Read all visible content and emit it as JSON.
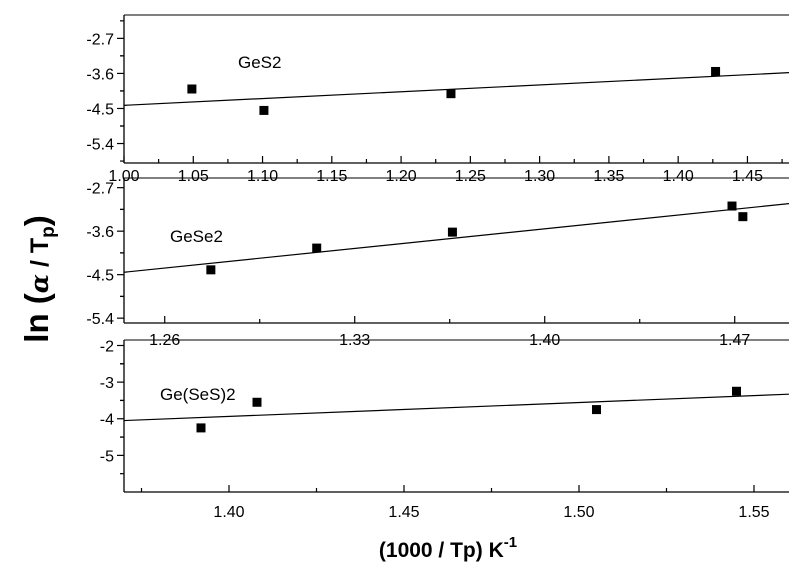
{
  "xlabel": {
    "main": "(1000 / Tp) K",
    "sup": "-1"
  },
  "ylabel": {
    "prefix": "ln (",
    "alpha": "α",
    "slash": " / T",
    "sub": "p",
    "suffix": ")"
  },
  "chart_data": [
    {
      "type": "scatter",
      "name": "GeS2",
      "xlim": [
        1.0,
        1.48
      ],
      "ylim": [
        -5.9,
        -2.1
      ],
      "xticks": [
        1.0,
        1.05,
        1.1,
        1.15,
        1.2,
        1.25,
        1.3,
        1.35,
        1.4,
        1.45
      ],
      "xtick_labels": [
        "1.00",
        "1.05",
        "1.10",
        "1.15",
        "1.20",
        "1.25",
        "1.30",
        "1.35",
        "1.40",
        "1.45"
      ],
      "yticks": [
        -2.7,
        -3.6,
        -4.5,
        -5.4
      ],
      "ytick_labels": [
        "-2.7",
        "-3.6",
        "-4.5",
        "-5.4"
      ],
      "x": [
        1.049,
        1.101,
        1.236,
        1.427
      ],
      "y": [
        -4.0,
        -4.55,
        -4.12,
        -3.55
      ],
      "fit_line": {
        "x": [
          1.0,
          1.48
        ],
        "y": [
          -4.42,
          -3.58
        ]
      }
    },
    {
      "type": "scatter",
      "name": "GeSe2",
      "xlim": [
        1.245,
        1.49
      ],
      "ylim": [
        -5.5,
        -2.5
      ],
      "xticks": [
        1.26,
        1.33,
        1.4,
        1.47
      ],
      "xtick_labels": [
        "1.26",
        "1.33",
        "1.40",
        "1.47"
      ],
      "yticks": [
        -2.7,
        -3.6,
        -4.5,
        -5.4
      ],
      "ytick_labels": [
        "-2.7",
        "-3.6",
        "-4.5",
        "-5.4"
      ],
      "x": [
        1.277,
        1.316,
        1.366,
        1.469,
        1.473
      ],
      "y": [
        -4.4,
        -3.95,
        -3.62,
        -3.08,
        -3.3
      ],
      "fit_line": {
        "x": [
          1.245,
          1.49
        ],
        "y": [
          -4.45,
          -3.03
        ]
      }
    },
    {
      "type": "scatter",
      "name": "Ge(SeS)2",
      "xlim": [
        1.37,
        1.56
      ],
      "ylim": [
        -6.0,
        -1.85
      ],
      "xticks": [
        1.4,
        1.45,
        1.5,
        1.55
      ],
      "xtick_labels": [
        "1.40",
        "1.45",
        "1.50",
        "1.55"
      ],
      "yticks": [
        -2,
        -3,
        -4,
        -5
      ],
      "ytick_labels": [
        "-2",
        "-3",
        "-4",
        "-5"
      ],
      "x": [
        1.392,
        1.408,
        1.505,
        1.545
      ],
      "y": [
        -4.25,
        -3.55,
        -3.75,
        -3.25
      ],
      "fit_line": {
        "x": [
          1.37,
          1.56
        ],
        "y": [
          -4.05,
          -3.33
        ]
      }
    }
  ]
}
